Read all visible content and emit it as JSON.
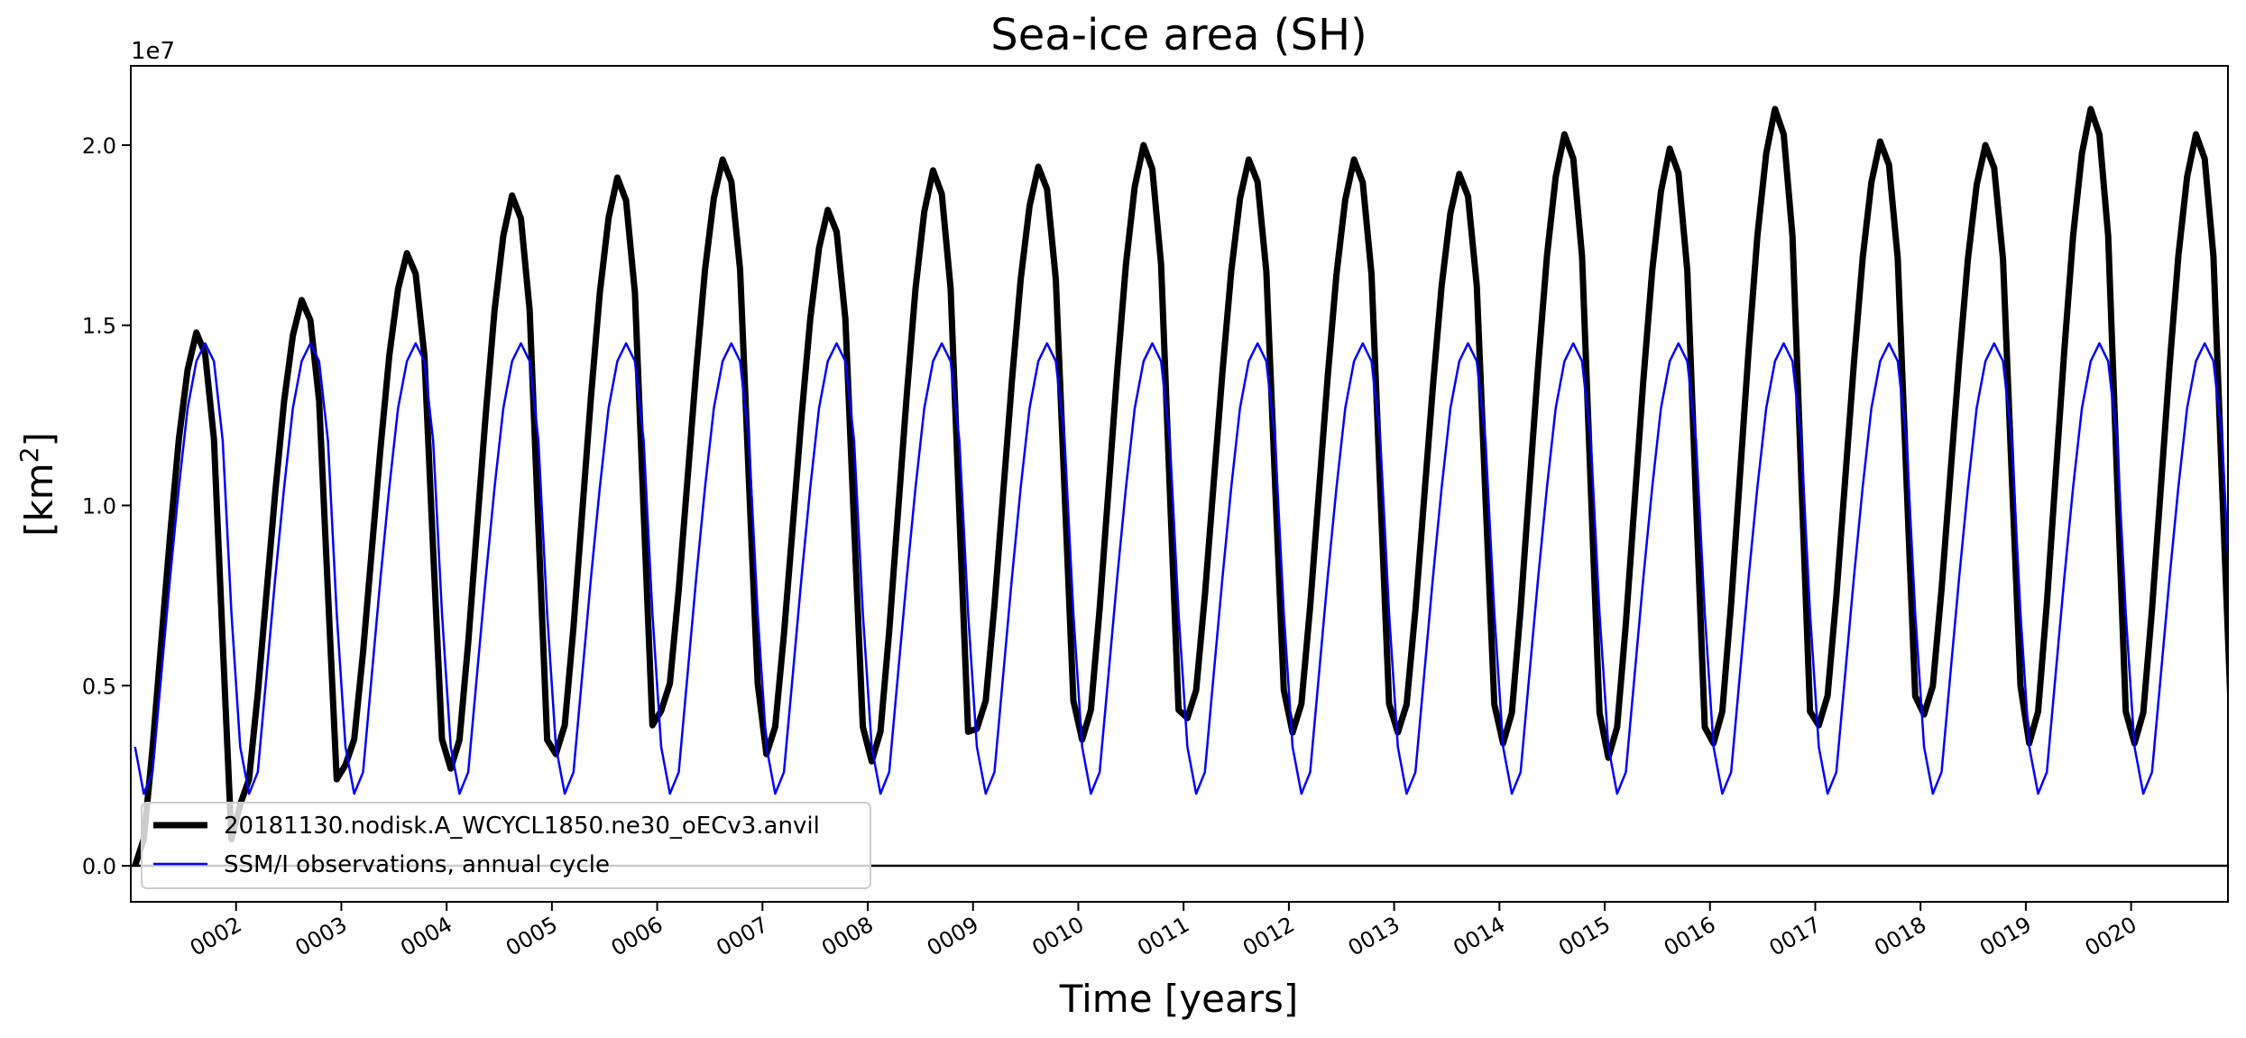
{
  "chart_data": {
    "type": "line",
    "title": "Sea-ice area (SH)",
    "xlabel": "Time [years]",
    "ylabel": "[km",
    "ylabel_sup": "2",
    "ylabel_close": "]",
    "y_offset_label": "1e7",
    "xlim": [
      0.0,
      19.92
    ],
    "ylim": [
      -0.1,
      2.22
    ],
    "grid": false,
    "legend_position": "lower-left",
    "x_tick_values": [
      1,
      2,
      3,
      4,
      5,
      6,
      7,
      8,
      9,
      10,
      11,
      12,
      13,
      14,
      15,
      16,
      17,
      18,
      19
    ],
    "x_tick_labels": [
      "0002",
      "0003",
      "0004",
      "0005",
      "0006",
      "0007",
      "0008",
      "0009",
      "0010",
      "0011",
      "0012",
      "0013",
      "0014",
      "0015",
      "0016",
      "0017",
      "0018",
      "0019",
      "0020"
    ],
    "y_tick_values": [
      0,
      0.5,
      1.0,
      1.5,
      2.0
    ],
    "y_tick_labels": [
      "0.0",
      "0.5",
      "1.0",
      "1.5",
      "2.0"
    ],
    "zero_line": true,
    "model_series": {
      "name": "20181130.nodisk.A_WCYCL1850.ne30_oECv3.anvil",
      "color": "#000000",
      "months_start": 0.04,
      "month_step": 0.0833,
      "maxima": [
        1.48,
        1.57,
        1.7,
        1.86,
        1.91,
        1.96,
        1.82,
        1.93,
        1.94,
        2.0,
        1.96,
        1.96,
        1.92,
        2.03,
        1.99,
        2.1,
        2.01,
        2.0,
        2.1,
        2.03
      ],
      "minima": [
        0.0,
        0.17,
        0.28,
        0.27,
        0.31,
        0.43,
        0.31,
        0.29,
        0.38,
        0.35,
        0.41,
        0.37,
        0.37,
        0.34,
        0.3,
        0.34,
        0.39,
        0.42,
        0.34,
        0.34
      ]
    },
    "obs_series": {
      "name": "SSM/I observations, annual cycle",
      "color": "#0000ff",
      "annual_cycle": [
        0.33,
        0.2,
        0.26,
        0.53,
        0.8,
        1.05,
        1.27,
        1.4,
        1.45,
        1.4,
        1.18,
        0.7
      ]
    }
  }
}
